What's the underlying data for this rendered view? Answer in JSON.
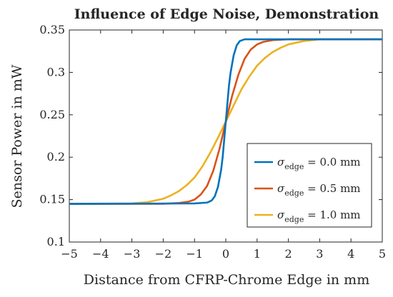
{
  "chart_data": {
    "type": "line",
    "title": "Influence of Edge Noise, Demonstration",
    "xlabel": "Distance from CFRP-Chrome Edge in mm",
    "ylabel": "Sensor Power in mW",
    "xlim": [
      -5,
      5
    ],
    "ylim": [
      0.1,
      0.35
    ],
    "xticks": [
      -5,
      -4,
      -3,
      -2,
      -1,
      0,
      1,
      2,
      3,
      4,
      5
    ],
    "xtick_labels": [
      "−5",
      "−4",
      "−3",
      "−2",
      "−1",
      "0",
      "1",
      "2",
      "3",
      "4",
      "5"
    ],
    "yticks": [
      0.1,
      0.15,
      0.2,
      0.25,
      0.3,
      0.35
    ],
    "ytick_labels": [
      "0.1",
      "0.15",
      "0.2",
      "0.25",
      "0.3",
      "0.35"
    ],
    "grid": false,
    "legend_position": "lower-right",
    "series": [
      {
        "sigma_symbol": "σ",
        "subscript": "edge",
        "value_text": " = 0.0 mm",
        "color": "#0072BD",
        "x": [
          -5,
          -1.0,
          -0.6,
          -0.45,
          -0.35,
          -0.25,
          -0.15,
          -0.1,
          -0.05,
          0,
          0.05,
          0.1,
          0.15,
          0.25,
          0.35,
          0.45,
          0.6,
          1.0,
          5
        ],
        "y": [
          0.145,
          0.1455,
          0.1465,
          0.149,
          0.154,
          0.165,
          0.185,
          0.2,
          0.221,
          0.242,
          0.263,
          0.284,
          0.299,
          0.32,
          0.332,
          0.337,
          0.339,
          0.339,
          0.339
        ]
      },
      {
        "sigma_symbol": "σ",
        "subscript": "edge",
        "value_text": " = 0.5 mm",
        "color": "#D95319",
        "x": [
          -5,
          -2.0,
          -1.5,
          -1.2,
          -1.0,
          -0.8,
          -0.6,
          -0.4,
          -0.2,
          0,
          0.2,
          0.4,
          0.6,
          0.8,
          1.0,
          1.2,
          1.5,
          2.0,
          5
        ],
        "y": [
          0.145,
          0.1451,
          0.146,
          0.1475,
          0.15,
          0.156,
          0.166,
          0.184,
          0.21,
          0.242,
          0.272,
          0.297,
          0.316,
          0.327,
          0.333,
          0.336,
          0.338,
          0.339,
          0.339
        ]
      },
      {
        "sigma_symbol": "σ",
        "subscript": "edge",
        "value_text": " = 1.0 mm",
        "color": "#EDB120",
        "x": [
          -5,
          -3.0,
          -2.5,
          -2.0,
          -1.75,
          -1.5,
          -1.25,
          -1.0,
          -0.75,
          -0.5,
          -0.25,
          0,
          0.25,
          0.5,
          0.75,
          1.0,
          1.25,
          1.5,
          1.75,
          2.0,
          2.5,
          3.0,
          5
        ],
        "y": [
          0.145,
          0.1455,
          0.147,
          0.151,
          0.155,
          0.16,
          0.167,
          0.176,
          0.189,
          0.205,
          0.223,
          0.242,
          0.261,
          0.28,
          0.295,
          0.308,
          0.317,
          0.324,
          0.329,
          0.333,
          0.337,
          0.339,
          0.339
        ]
      }
    ]
  }
}
